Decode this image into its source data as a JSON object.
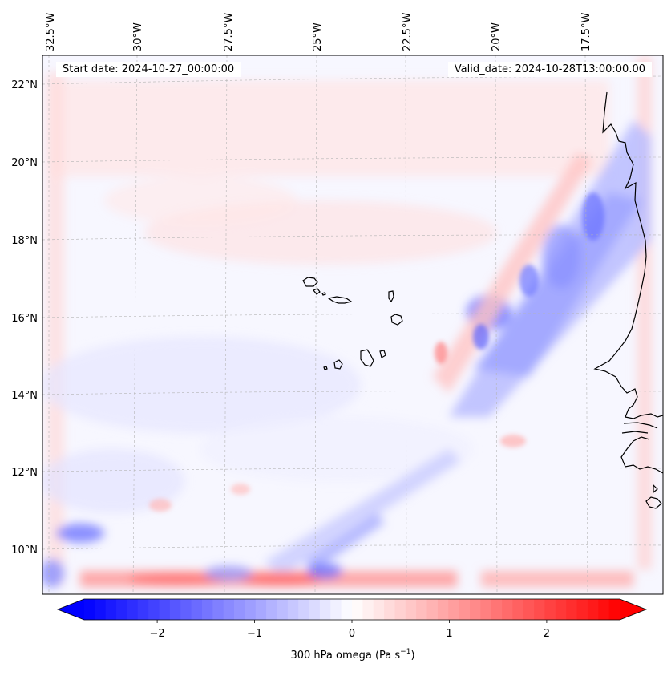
{
  "header": {
    "start_date": "Start date: 2024-10-27_00:00:00",
    "valid_date": "Valid_date: 2024-10-28T13:00:00.00"
  },
  "map": {
    "lon_labels": [
      "32.5°W",
      "30°W",
      "27.5°W",
      "25°W",
      "22.5°W",
      "20°W",
      "17.5°W"
    ],
    "lat_labels": [
      "22°N",
      "20°N",
      "18°N",
      "16°N",
      "14°N",
      "12°N",
      "10°N"
    ]
  },
  "colorbar": {
    "label_main": "300 hPa omega (Pa s",
    "label_sup": "−1",
    "label_tail": ")",
    "ticks": [
      "−2",
      "−1",
      "0",
      "1",
      "2"
    ],
    "vmin": -2.75,
    "vmax": 2.75,
    "tick_values": [
      -2,
      -1,
      0,
      1,
      2
    ],
    "neg_color": "#0000ff",
    "zero_color": "#ffffff",
    "pos_color": "#ff0000"
  }
}
